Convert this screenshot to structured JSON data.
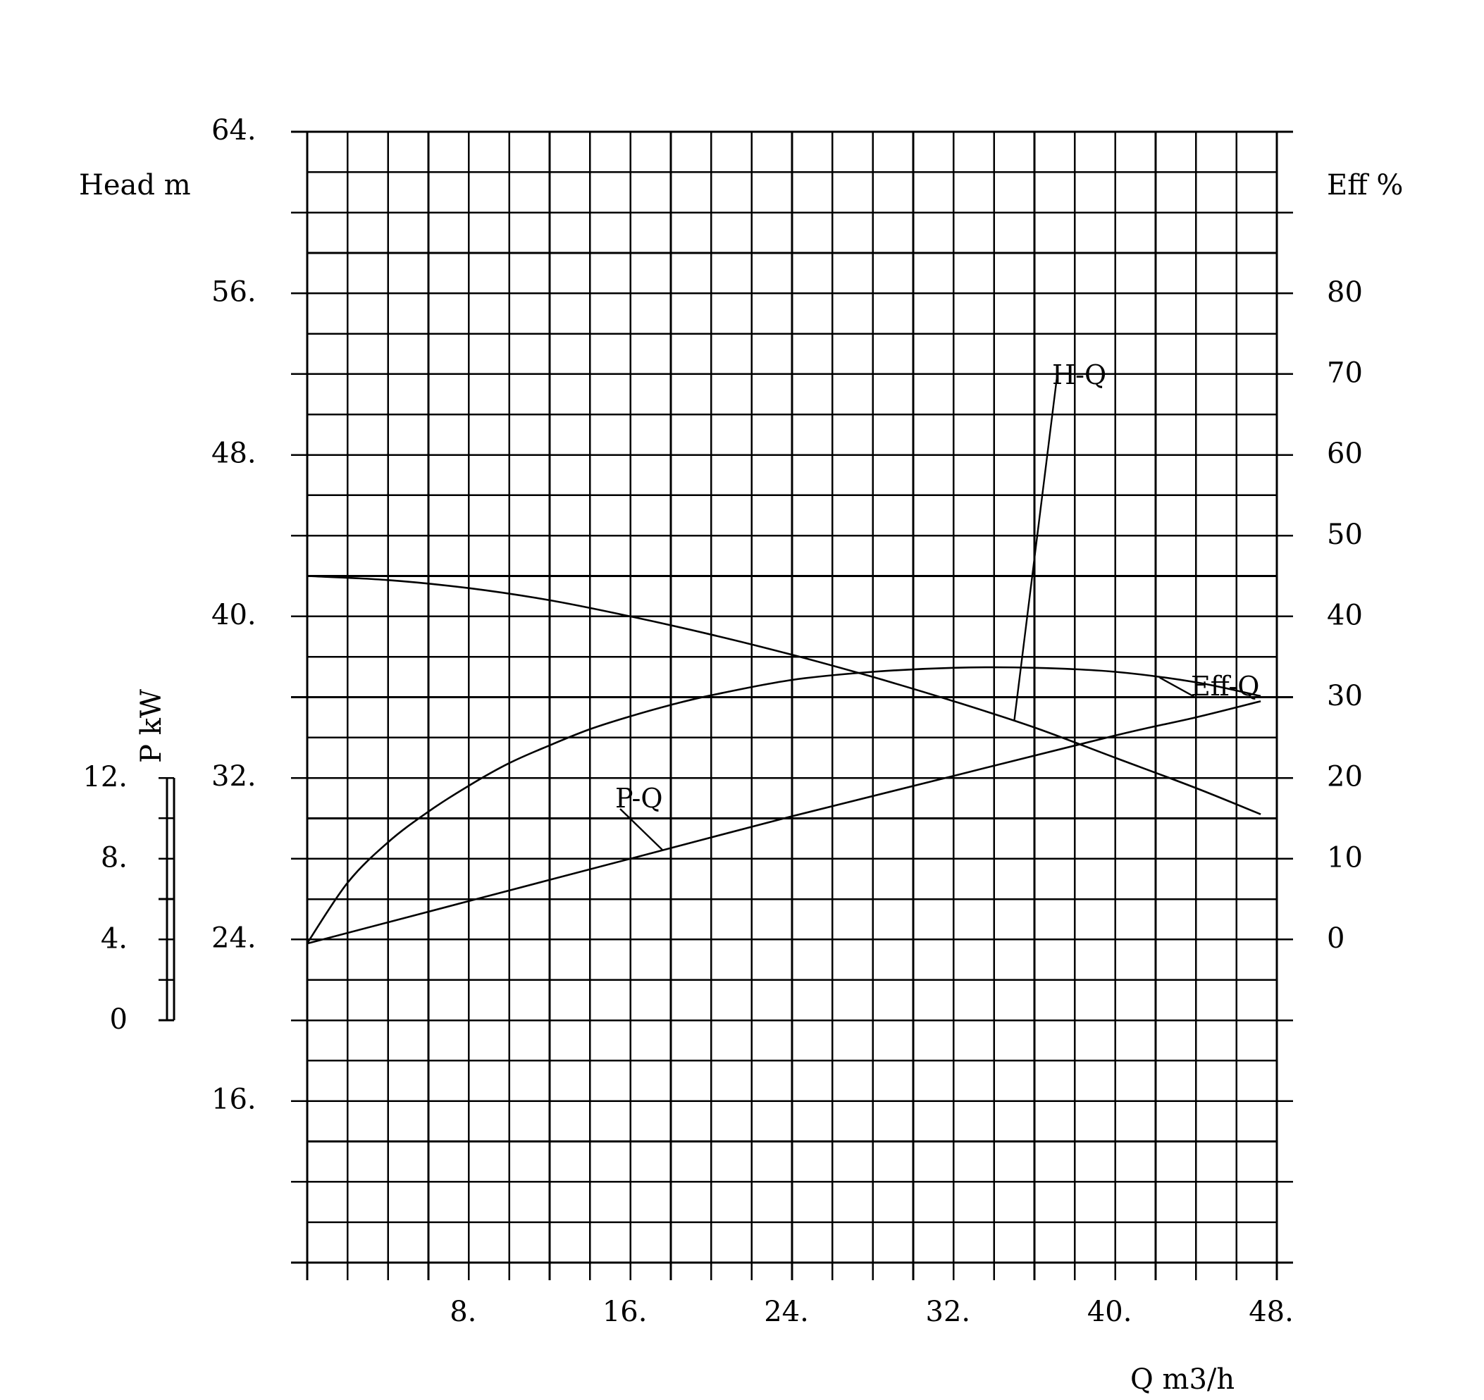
{
  "chart_data": {
    "type": "line",
    "x_axis": {
      "label": "Q m3/h",
      "range": [
        0,
        48
      ],
      "tick_labels": [
        "8.",
        "16.",
        "24.",
        "32.",
        "40.",
        "48."
      ]
    },
    "head_axis": {
      "label": "Head m",
      "range": [
        16,
        64
      ],
      "tick_labels": [
        "64.",
        "56.",
        "48.",
        "40.",
        "32.",
        "24.",
        "16."
      ]
    },
    "eff_axis": {
      "label": "Eff %",
      "range": [
        0,
        80
      ],
      "tick_labels": [
        "80",
        "70",
        "60",
        "50",
        "40",
        "30",
        "20",
        "10",
        "0"
      ]
    },
    "power_axis": {
      "label": "P kW",
      "range": [
        0,
        12
      ],
      "tick_labels": [
        "12.",
        "8.",
        "4.",
        "0"
      ]
    },
    "grid": true,
    "series": [
      {
        "name": "H-Q",
        "axis": "head",
        "points": [
          [
            0,
            42.0
          ],
          [
            4,
            41.8
          ],
          [
            8,
            41.4
          ],
          [
            12,
            40.8
          ],
          [
            16,
            40.0
          ],
          [
            20,
            39.1
          ],
          [
            24,
            38.1
          ],
          [
            28,
            37.0
          ],
          [
            32,
            35.8
          ],
          [
            36,
            34.5
          ],
          [
            40,
            33.0
          ],
          [
            44,
            31.5
          ],
          [
            47.2,
            30.2
          ]
        ]
      },
      {
        "name": "Eff-Q",
        "axis": "eff",
        "points": [
          [
            0,
            -0.5
          ],
          [
            2,
            7.0
          ],
          [
            4,
            12.0
          ],
          [
            6,
            15.8
          ],
          [
            8,
            19.0
          ],
          [
            10,
            21.8
          ],
          [
            12,
            24.0
          ],
          [
            14,
            26.0
          ],
          [
            16,
            27.6
          ],
          [
            18,
            29.0
          ],
          [
            20,
            30.2
          ],
          [
            24,
            32.1
          ],
          [
            28,
            33.1
          ],
          [
            32,
            33.6
          ],
          [
            36,
            33.6
          ],
          [
            40,
            33.1
          ],
          [
            44,
            31.8
          ],
          [
            47.2,
            30.1
          ]
        ]
      },
      {
        "name": "P-Q",
        "axis": "power",
        "points": [
          [
            0,
            3.8
          ],
          [
            8,
            5.9
          ],
          [
            16,
            8.0
          ],
          [
            24,
            10.1
          ],
          [
            32,
            12.1
          ],
          [
            40,
            14.1
          ],
          [
            44,
            15.0
          ],
          [
            47.2,
            15.8
          ]
        ]
      }
    ]
  }
}
